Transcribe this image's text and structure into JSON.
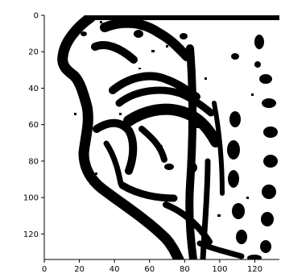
{
  "chart_data": {
    "type": "heatmap",
    "title": "",
    "xlabel": "",
    "ylabel": "",
    "xlim": [
      0,
      134
    ],
    "ylim": [
      0,
      134
    ],
    "y_inverted": true,
    "grid": false,
    "colormap": "binary",
    "x_ticks": [
      0,
      20,
      40,
      60,
      80,
      100,
      120
    ],
    "y_ticks": [
      0,
      20,
      40,
      60,
      80,
      100,
      120
    ],
    "x_tick_labels": [
      "0",
      "20",
      "40",
      "60",
      "80",
      "100",
      "120"
    ],
    "y_tick_labels": [
      "0",
      "20",
      "40",
      "60",
      "80",
      "100",
      "120"
    ],
    "content": "binary thresholded image of a mid-sagittal vocal tract (head profile, tongue, teeth, vertebrae)"
  },
  "colors": {
    "foreground": "#000000",
    "background": "#ffffff",
    "axis": "#000000"
  }
}
